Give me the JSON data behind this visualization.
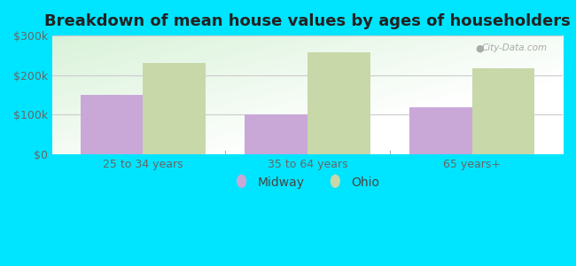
{
  "title": "Breakdown of mean house values by ages of householders",
  "categories": [
    "25 to 34 years",
    "35 to 64 years",
    "65 years+"
  ],
  "midway_values": [
    150000,
    100000,
    120000
  ],
  "ohio_values": [
    230000,
    258000,
    218000
  ],
  "midway_color": "#c9a8d8",
  "ohio_color": "#c8d8a8",
  "background_color": "#00e5ff",
  "ylabel_ticks": [
    "$0",
    "$100k",
    "$200k",
    "$300k"
  ],
  "ytick_values": [
    0,
    100000,
    200000,
    300000
  ],
  "ylim": [
    0,
    300000
  ],
  "legend_labels": [
    "Midway",
    "Ohio"
  ],
  "bar_width": 0.38,
  "title_fontsize": 13,
  "tick_fontsize": 9,
  "legend_fontsize": 10
}
